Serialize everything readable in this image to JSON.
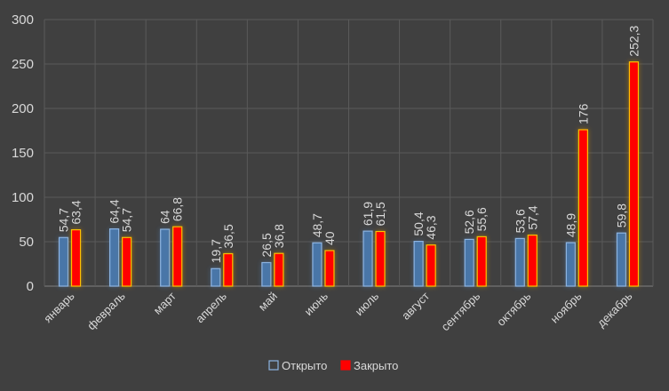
{
  "chart_data": {
    "type": "bar",
    "title": "",
    "xlabel": "",
    "ylabel": "",
    "ylim": [
      0,
      300
    ],
    "yticks": [
      0,
      50,
      100,
      150,
      200,
      250,
      300
    ],
    "grid": true,
    "legend_position": "bottom",
    "categories": [
      "январь",
      "февраль",
      "март",
      "апрель",
      "май",
      "июнь",
      "июль",
      "август",
      "сентябрь",
      "октябрь",
      "ноябрь",
      "декабрь"
    ],
    "series": [
      {
        "name": "Открыто",
        "color": "#4a76a8",
        "edge": "#8db4e2",
        "values": [
          54.7,
          64.4,
          64,
          19.7,
          26.5,
          48.7,
          61.9,
          50.4,
          52.6,
          53.6,
          48.9,
          59.8
        ],
        "labels": [
          "54,7",
          "64,4",
          "64",
          "19,7",
          "26,5",
          "48,7",
          "61,9",
          "50,4",
          "52,6",
          "53,6",
          "48,9",
          "59,8"
        ]
      },
      {
        "name": "Закрыто",
        "color": "#ff0000",
        "edge": "#ffc000",
        "values": [
          63.4,
          54.7,
          66.8,
          36.5,
          36.8,
          40,
          61.5,
          46.3,
          55.6,
          57.4,
          176,
          252.3
        ],
        "labels": [
          "63,4",
          "54,7",
          "66,8",
          "36,5",
          "36,8",
          "40",
          "61,5",
          "46,3",
          "55,6",
          "57,4",
          "176",
          "252,3"
        ]
      }
    ]
  }
}
